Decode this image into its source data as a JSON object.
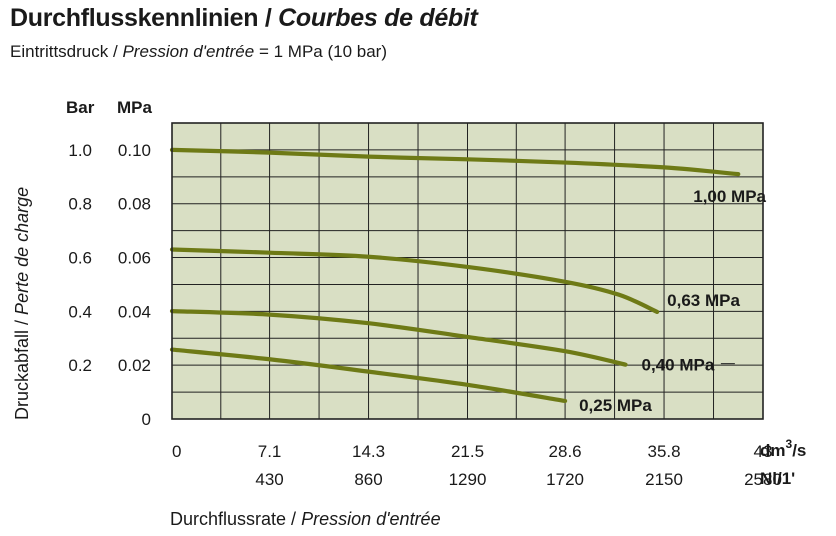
{
  "title": {
    "de": "Durchflusskennlinien /",
    "fr": "Courbes de débit"
  },
  "subtitle": {
    "de": "Eintrittsdruck /",
    "fr": "Pression d'entrée",
    "value": "= 1 MPa (10 bar)"
  },
  "chart_data": {
    "type": "line",
    "colors": {
      "plot_bg": "#d9dfc4",
      "line": "#6e7a16",
      "grid": "#222222"
    },
    "grid": true,
    "xlabel": {
      "de": "Durchflussrate /",
      "fr": "Pression d'entrée"
    },
    "ylabel": {
      "de": "Druckabfall /",
      "fr": "Perte de charge"
    },
    "x_unit_primary": "dm³/s",
    "x_unit_secondary": "Nl/1'",
    "y_unit_bar": "Bar",
    "y_unit_mpa": "MPa",
    "xlim": [
      0,
      43
    ],
    "ylim": [
      0,
      0.11
    ],
    "x_ticks_primary": [
      {
        "value": 0,
        "label": "0"
      },
      {
        "value": 7.1,
        "label": "7.1"
      },
      {
        "value": 14.3,
        "label": "14.3"
      },
      {
        "value": 21.5,
        "label": "21.5"
      },
      {
        "value": 28.6,
        "label": "28.6"
      },
      {
        "value": 35.8,
        "label": "35.8"
      },
      {
        "value": 43,
        "label": "43"
      }
    ],
    "x_ticks_secondary": [
      {
        "value": 7.1,
        "label": "430"
      },
      {
        "value": 14.3,
        "label": "860"
      },
      {
        "value": 21.5,
        "label": "1290"
      },
      {
        "value": 28.6,
        "label": "1720"
      },
      {
        "value": 35.8,
        "label": "2150"
      },
      {
        "value": 43,
        "label": "2580"
      }
    ],
    "y_ticks": [
      {
        "value": 0,
        "bar": "",
        "mpa": "0"
      },
      {
        "value": 0.02,
        "bar": "0.2",
        "mpa": "0.02"
      },
      {
        "value": 0.04,
        "bar": "0.4",
        "mpa": "0.04"
      },
      {
        "value": 0.06,
        "bar": "0.6",
        "mpa": "0.06"
      },
      {
        "value": 0.08,
        "bar": "0.8",
        "mpa": "0.08"
      },
      {
        "value": 0.1,
        "bar": "1.0",
        "mpa": "0.10"
      }
    ],
    "series": [
      {
        "name": "1,00 MPa",
        "x": [
          0,
          7.1,
          14.3,
          21.5,
          28.6,
          35.8,
          41.2
        ],
        "y": [
          0.1,
          0.099,
          0.0975,
          0.0965,
          0.0953,
          0.0935,
          0.091
        ]
      },
      {
        "name": "0,63 MPa",
        "x": [
          0,
          7.1,
          14.3,
          21.5,
          28.6,
          32.5,
          35.3
        ],
        "y": [
          0.063,
          0.0618,
          0.0603,
          0.0565,
          0.051,
          0.0462,
          0.0398
        ]
      },
      {
        "name": "0,40 MPa",
        "x": [
          0,
          7.1,
          14.3,
          21.5,
          28.6,
          33.0
        ],
        "y": [
          0.0401,
          0.0388,
          0.0356,
          0.0305,
          0.0252,
          0.0202
        ]
      },
      {
        "name": "0,25 MPa",
        "x": [
          0,
          7.1,
          14.3,
          21.5,
          28.6
        ],
        "y": [
          0.0258,
          0.0222,
          0.0176,
          0.0127,
          0.0067
        ]
      }
    ]
  }
}
